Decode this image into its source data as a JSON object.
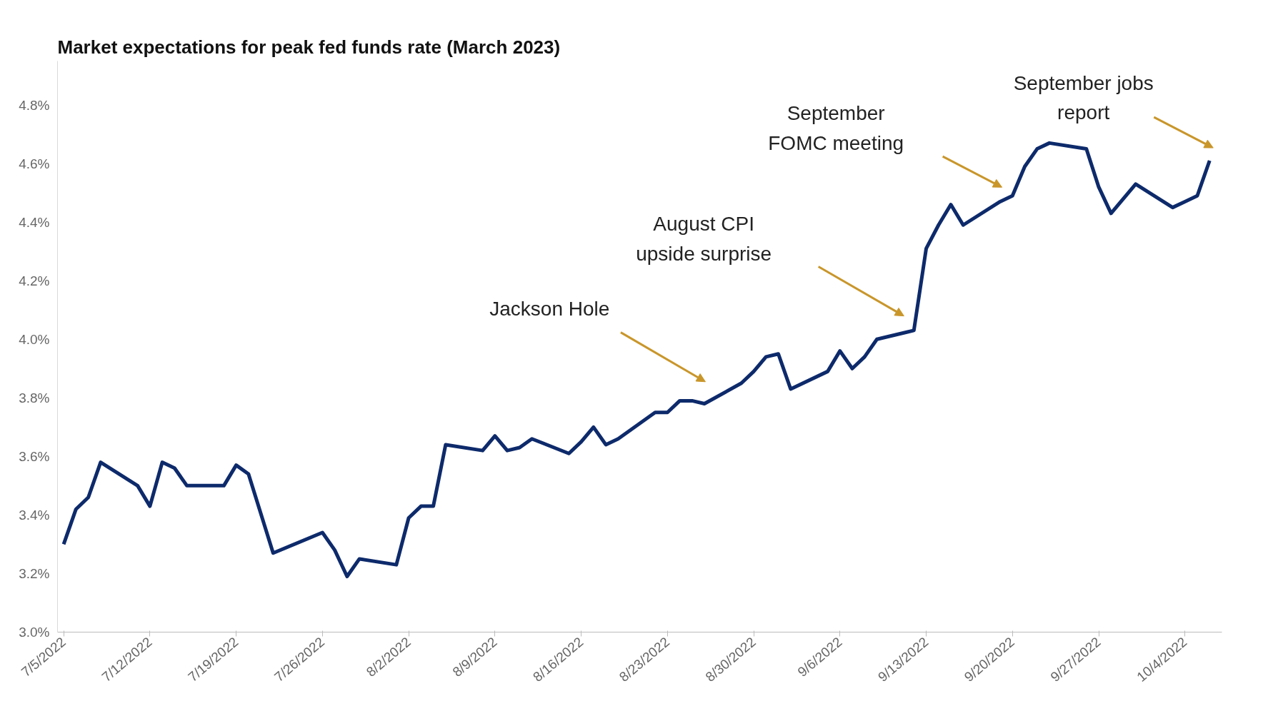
{
  "chart_data": {
    "type": "line",
    "title": "Market expectations for peak fed funds rate (March 2023)",
    "x": [
      "2022-07-05",
      "2022-07-06",
      "2022-07-07",
      "2022-07-08",
      "2022-07-11",
      "2022-07-12",
      "2022-07-13",
      "2022-07-14",
      "2022-07-15",
      "2022-07-18",
      "2022-07-19",
      "2022-07-20",
      "2022-07-22",
      "2022-07-26",
      "2022-07-27",
      "2022-07-28",
      "2022-07-29",
      "2022-08-01",
      "2022-08-02",
      "2022-08-03",
      "2022-08-04",
      "2022-08-05",
      "2022-08-08",
      "2022-08-09",
      "2022-08-10",
      "2022-08-11",
      "2022-08-12",
      "2022-08-15",
      "2022-08-16",
      "2022-08-17",
      "2022-08-18",
      "2022-08-19",
      "2022-08-22",
      "2022-08-23",
      "2022-08-24",
      "2022-08-25",
      "2022-08-26",
      "2022-08-29",
      "2022-08-30",
      "2022-08-31",
      "2022-09-01",
      "2022-09-02",
      "2022-09-05",
      "2022-09-06",
      "2022-09-07",
      "2022-09-08",
      "2022-09-09",
      "2022-09-12",
      "2022-09-13",
      "2022-09-14",
      "2022-09-15",
      "2022-09-16",
      "2022-09-19",
      "2022-09-20",
      "2022-09-21",
      "2022-09-22",
      "2022-09-23",
      "2022-09-26",
      "2022-09-27",
      "2022-09-28",
      "2022-09-29",
      "2022-09-30",
      "2022-10-03",
      "2022-10-04",
      "2022-10-05",
      "2022-10-06"
    ],
    "series": [
      {
        "color": "#0d2a6b",
        "values": [
          3.3,
          3.42,
          3.46,
          3.58,
          3.5,
          3.43,
          3.58,
          3.56,
          3.5,
          3.5,
          3.57,
          3.54,
          3.27,
          3.34,
          3.28,
          3.19,
          3.25,
          3.23,
          3.39,
          3.43,
          3.43,
          3.64,
          3.62,
          3.67,
          3.62,
          3.63,
          3.66,
          3.61,
          3.65,
          3.7,
          3.64,
          3.66,
          3.75,
          3.75,
          3.79,
          3.79,
          3.78,
          3.85,
          3.89,
          3.94,
          3.95,
          3.83,
          3.89,
          3.96,
          3.9,
          3.94,
          4.0,
          4.03,
          4.31,
          4.39,
          4.46,
          4.39,
          4.47,
          4.49,
          4.59,
          4.65,
          4.67,
          4.65,
          4.52,
          4.43,
          4.48,
          4.53,
          4.45,
          4.47,
          4.49,
          4.61
        ]
      }
    ],
    "xlim": [
      "2022-07-04T12:00",
      "2022-10-07"
    ],
    "xticks": [
      {
        "value": "2022-07-05",
        "label": "7/5/2022"
      },
      {
        "value": "2022-07-12",
        "label": "7/12/2022"
      },
      {
        "value": "2022-07-19",
        "label": "7/19/2022"
      },
      {
        "value": "2022-07-26",
        "label": "7/26/2022"
      },
      {
        "value": "2022-08-02",
        "label": "8/2/2022"
      },
      {
        "value": "2022-08-09",
        "label": "8/9/2022"
      },
      {
        "value": "2022-08-16",
        "label": "8/16/2022"
      },
      {
        "value": "2022-08-23",
        "label": "8/23/2022"
      },
      {
        "value": "2022-08-30",
        "label": "8/30/2022"
      },
      {
        "value": "2022-09-06",
        "label": "9/6/2022"
      },
      {
        "value": "2022-09-13",
        "label": "9/13/2022"
      },
      {
        "value": "2022-09-20",
        "label": "9/20/2022"
      },
      {
        "value": "2022-09-27",
        "label": "9/27/2022"
      },
      {
        "value": "2022-10-04",
        "label": "10/4/2022"
      }
    ],
    "ylim": [
      3.0,
      4.95
    ],
    "yticks": [
      {
        "value": 3.0,
        "label": "3.0%"
      },
      {
        "value": 3.2,
        "label": "3.2%"
      },
      {
        "value": 3.4,
        "label": "3.4%"
      },
      {
        "value": 3.6,
        "label": "3.6%"
      },
      {
        "value": 3.8,
        "label": "3.8%"
      },
      {
        "value": 4.0,
        "label": "4.0%"
      },
      {
        "value": 4.2,
        "label": "4.2%"
      },
      {
        "value": 4.4,
        "label": "4.4%"
      },
      {
        "value": 4.6,
        "label": "4.6%"
      },
      {
        "value": 4.8,
        "label": "4.8%"
      }
    ],
    "annotations": [
      "Jackson Hole",
      "August CPI\nupside surprise",
      "September\nFOMC meeting",
      "September jobs\nreport"
    ],
    "grid": false,
    "marker": "none",
    "line_style": "solid"
  }
}
